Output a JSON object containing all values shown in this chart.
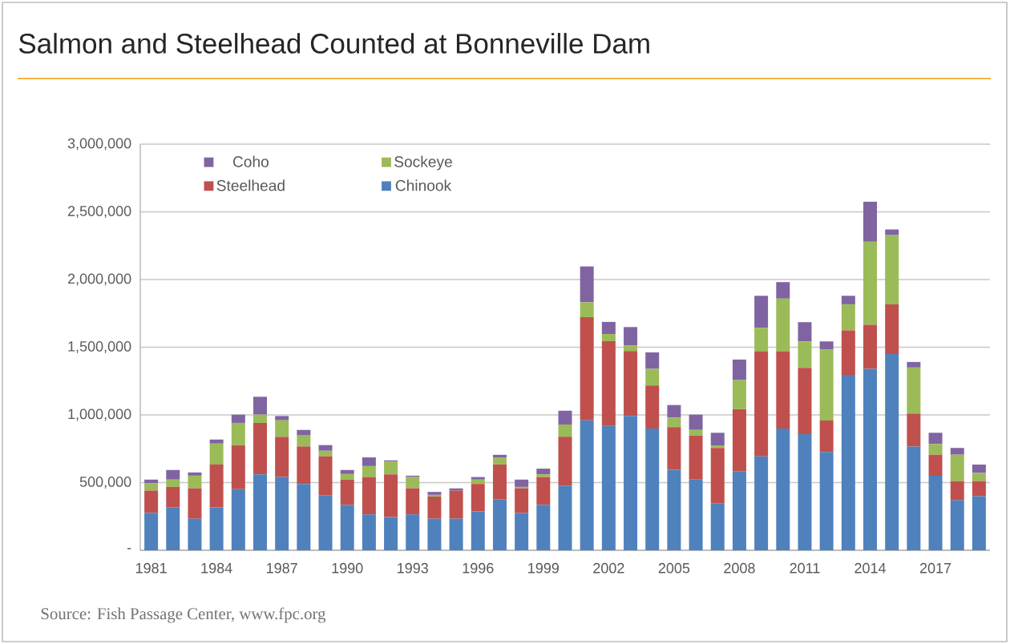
{
  "chart_data": {
    "type": "bar",
    "stacked": true,
    "title": "Salmon and Steelhead Counted at Bonneville Dam",
    "categories": [
      "1981",
      null,
      null,
      "1984",
      null,
      null,
      "1987",
      null,
      null,
      "1990",
      null,
      null,
      "1993",
      null,
      null,
      "1996",
      null,
      null,
      "1999",
      null,
      null,
      "2002",
      null,
      null,
      "2005",
      null,
      null,
      "2008",
      null,
      null,
      "2011",
      null,
      null,
      "2014",
      null,
      null,
      "2017",
      null,
      null
    ],
    "series": [
      {
        "name": "Chinook",
        "color": "#4f81bd",
        "values": [
          277000,
          316000,
          233000,
          316000,
          451000,
          561000,
          541000,
          490000,
          407000,
          336000,
          265000,
          245000,
          265000,
          233000,
          233000,
          287000,
          377000,
          275000,
          336000,
          478000,
          960000,
          919000,
          992000,
          899000,
          595000,
          522000,
          347000,
          584000,
          694000,
          900000,
          858000,
          726000,
          1296000,
          1340000,
          1450000,
          766000,
          550000,
          369000,
          399000
        ]
      },
      {
        "name": "Steelhead",
        "color": "#c0504d",
        "values": [
          164000,
          152000,
          225000,
          318000,
          326000,
          380000,
          297000,
          277000,
          287000,
          186000,
          276000,
          316000,
          193000,
          164000,
          208000,
          203000,
          257000,
          183000,
          205000,
          360000,
          762000,
          625000,
          480000,
          318000,
          314000,
          326000,
          409000,
          458000,
          776000,
          570000,
          490000,
          233000,
          328000,
          325000,
          367000,
          244000,
          156000,
          142000,
          112000
        ]
      },
      {
        "name": "Sockeye",
        "color": "#9bbb59",
        "values": [
          55000,
          54000,
          93000,
          154000,
          164000,
          61000,
          122000,
          81000,
          41000,
          41000,
          81000,
          93000,
          83000,
          12000,
          null,
          32000,
          52000,
          10000,
          20000,
          91000,
          110000,
          53000,
          40000,
          123000,
          71000,
          41000,
          19000,
          215000,
          174000,
          389000,
          195000,
          523000,
          193000,
          614000,
          511000,
          340000,
          79000,
          195000,
          61000
        ]
      },
      {
        "name": "Coho",
        "color": "#8064a2",
        "values": [
          26000,
          71000,
          24000,
          30000,
          61000,
          132000,
          32000,
          41000,
          42000,
          30000,
          64000,
          10000,
          10000,
          22000,
          16000,
          19000,
          19000,
          54000,
          42000,
          102000,
          265000,
          90000,
          137000,
          122000,
          93000,
          113000,
          93000,
          152000,
          236000,
          122000,
          142000,
          61000,
          63000,
          296000,
          42000,
          41000,
          83000,
          50000,
          61000
        ]
      }
    ],
    "ylim": [
      0,
      3000000
    ],
    "yticks": [
      {
        "value": 0,
        "label": "-"
      },
      {
        "value": 500000,
        "label": "500,000"
      },
      {
        "value": 1000000,
        "label": "1,000,000"
      },
      {
        "value": 1500000,
        "label": "1,500,000"
      },
      {
        "value": 2000000,
        "label": "2,000,000"
      },
      {
        "value": 2500000,
        "label": "2,500,000"
      },
      {
        "value": 3000000,
        "label": "3,000,000"
      }
    ],
    "grid": "y",
    "legend": "top left",
    "annotations": [
      "Source: Fish Passage Center, www.fpc.org"
    ]
  }
}
